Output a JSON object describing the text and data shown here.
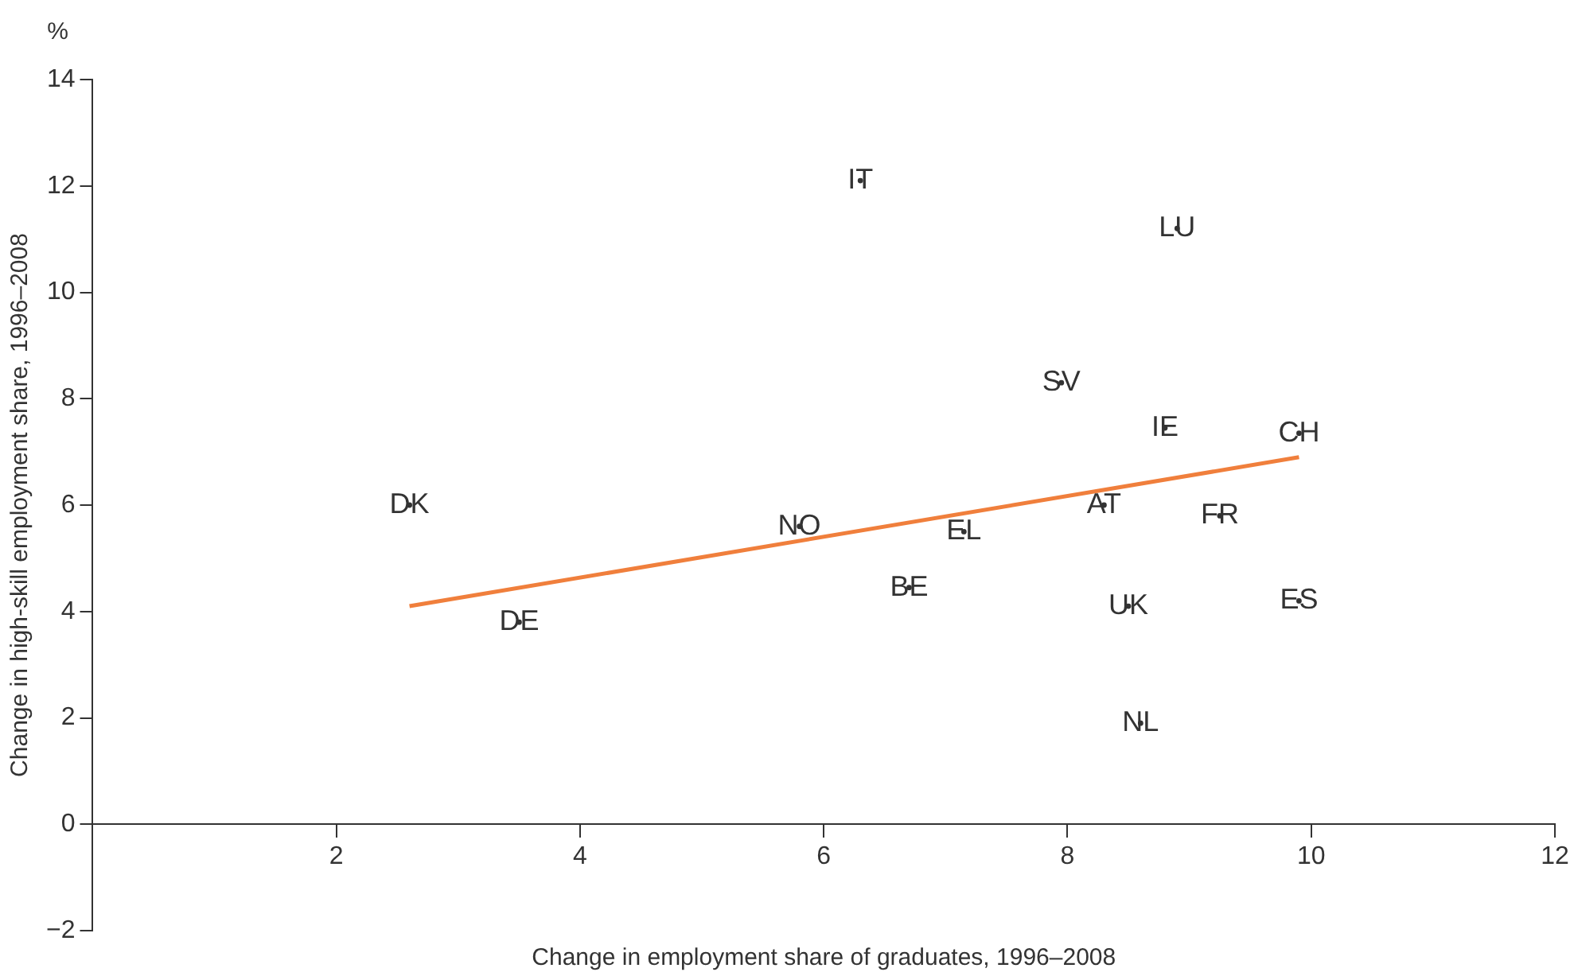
{
  "chart_data": {
    "type": "scatter",
    "xlabel": "Change in employment share of graduates, 1996–2008",
    "ylabel": "Change in high-skill employment share, 1996–2008",
    "annotations": [
      "%"
    ],
    "xlim": [
      0,
      12
    ],
    "xticks": [
      2,
      4,
      6,
      8,
      10,
      12
    ],
    "ylim": [
      -2,
      14
    ],
    "yticks": [
      {
        "value": -2,
        "label": "−2"
      },
      0,
      2,
      4,
      6,
      8,
      10,
      12,
      14
    ],
    "grid": false,
    "legend": false,
    "series": [
      {
        "type": "scatter",
        "color": "#333333",
        "marker": "circle",
        "x": [
          6.3,
          8.9,
          7.95,
          8.8,
          9.9,
          2.6,
          5.8,
          8.3,
          9.25,
          7.15,
          6.7,
          8.5,
          9.9,
          3.5,
          8.6
        ],
        "values": [
          12.1,
          11.2,
          8.3,
          7.45,
          7.35,
          6.0,
          5.6,
          6.0,
          5.8,
          5.5,
          4.45,
          4.1,
          4.2,
          3.8,
          1.9
        ],
        "value_labels": [
          "IT",
          "LU",
          "SV",
          "IE",
          "CH",
          "DK",
          "NO",
          "AT",
          "FR",
          "EL",
          "BE",
          "UK",
          "ES",
          "DE",
          "NL"
        ]
      },
      {
        "type": "line",
        "color": "#f07f3c",
        "x": [
          2.6,
          9.9
        ],
        "values": [
          4.1,
          6.9
        ]
      }
    ]
  }
}
